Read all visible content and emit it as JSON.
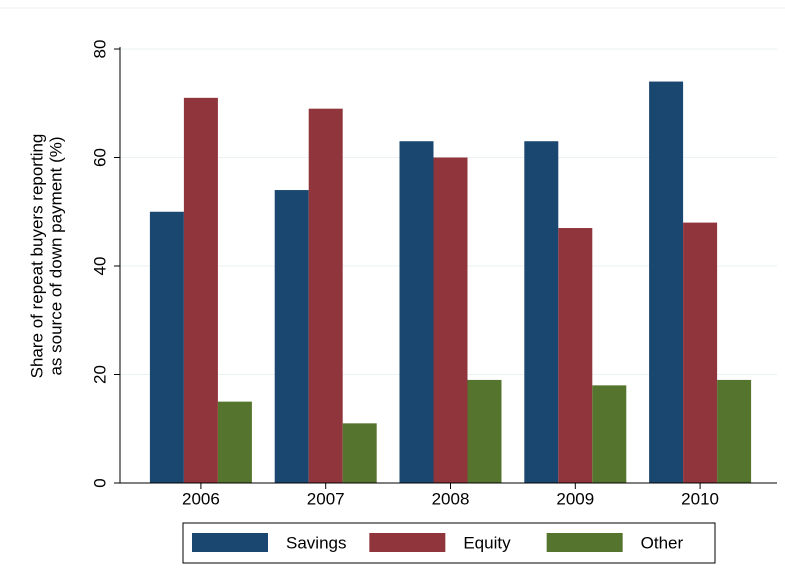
{
  "chart_data": {
    "type": "bar",
    "y_label": [
      "Share of repeat buyers reporting",
      "as source of down payment (%)"
    ],
    "categories": [
      "2006",
      "2007",
      "2008",
      "2009",
      "2010"
    ],
    "series": [
      {
        "name": "Savings",
        "color": "#1a476f",
        "values": [
          50,
          54,
          63,
          63,
          74
        ]
      },
      {
        "name": "Equity",
        "color": "#90353b",
        "values": [
          71,
          69,
          60,
          47,
          48
        ]
      },
      {
        "name": "Other",
        "color": "#55752f",
        "values": [
          15,
          11,
          19,
          18,
          19
        ]
      }
    ],
    "ylim": [
      0,
      80
    ],
    "yticks": [
      0,
      20,
      40,
      60,
      80
    ],
    "grid": true,
    "legend": "bottom"
  }
}
